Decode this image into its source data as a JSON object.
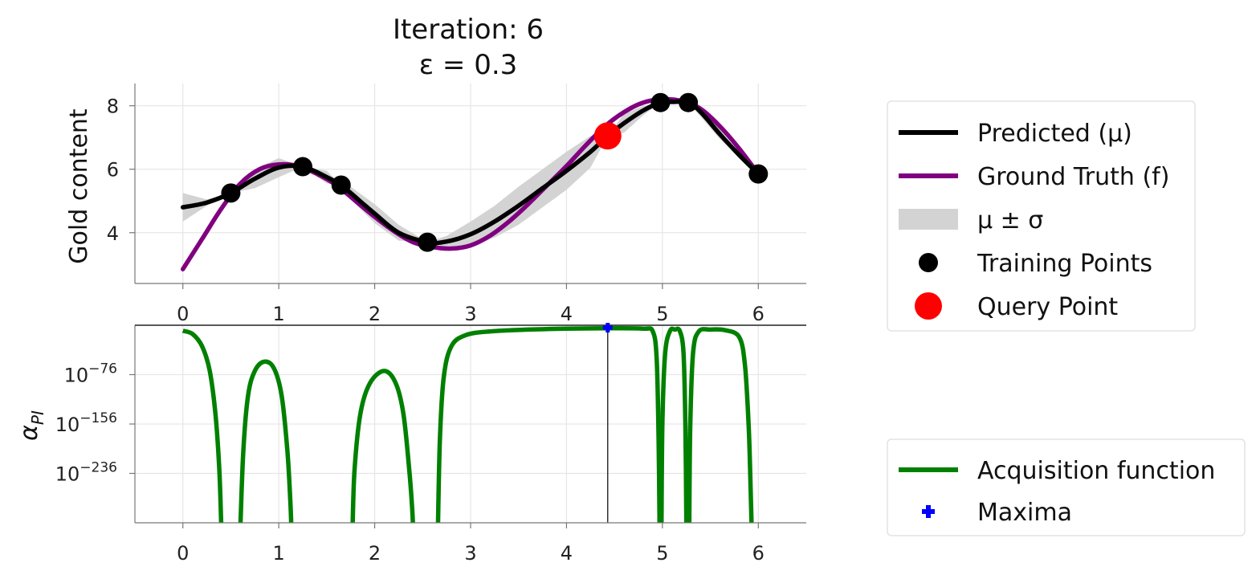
{
  "chart_data": [
    {
      "type": "line",
      "title_line1": "Iteration: 6",
      "title_line2": "ε = 0.3",
      "ylabel": "Gold content",
      "xlim": [
        -0.5,
        6.5
      ],
      "ylim": [
        2.4,
        8.7
      ],
      "xticks": [
        0,
        1,
        2,
        3,
        4,
        5,
        6
      ],
      "yticks": [
        4,
        6,
        8
      ],
      "grid": true,
      "legend": {
        "placement": "right",
        "entries": [
          {
            "label": "Predicted (μ)",
            "kind": "line",
            "color": "#000000"
          },
          {
            "label": "Ground Truth (f)",
            "kind": "line",
            "color": "#800080"
          },
          {
            "label": "μ ± σ",
            "kind": "band",
            "color": "#d3d3d3"
          },
          {
            "label": "Training Points",
            "kind": "marker",
            "color": "#000000"
          },
          {
            "label": "Query Point",
            "kind": "marker-large",
            "color": "#ff0000"
          }
        ]
      },
      "series": [
        {
          "name": "Predicted (μ)",
          "color": "#000000",
          "x": [
            0,
            0.25,
            0.5,
            0.75,
            1.0,
            1.25,
            1.5,
            1.65,
            1.75,
            2.0,
            2.25,
            2.55,
            2.75,
            3.0,
            3.25,
            3.5,
            3.75,
            4.0,
            4.25,
            4.43,
            4.6,
            4.8,
            4.98,
            5.1,
            5.27,
            5.4,
            5.6,
            5.8,
            6.0
          ],
          "y": [
            4.8,
            4.95,
            5.25,
            5.7,
            6.05,
            6.08,
            5.75,
            5.5,
            5.25,
            4.6,
            4.0,
            3.7,
            3.72,
            3.95,
            4.35,
            4.85,
            5.4,
            5.95,
            6.55,
            7.05,
            7.45,
            7.85,
            8.1,
            8.12,
            8.1,
            7.8,
            7.1,
            6.45,
            5.85
          ]
        },
        {
          "name": "Ground Truth (f)",
          "color": "#800080",
          "x": [
            0,
            0.2,
            0.4,
            0.6,
            0.8,
            1.0,
            1.2,
            1.4,
            1.6,
            1.8,
            2.0,
            2.2,
            2.4,
            2.6,
            2.8,
            3.0,
            3.2,
            3.4,
            3.6,
            3.8,
            4.0,
            4.2,
            4.4,
            4.6,
            4.8,
            5.0,
            5.2,
            5.4,
            5.6,
            5.8,
            6.0
          ],
          "y": [
            2.85,
            3.8,
            4.75,
            5.55,
            6.0,
            6.15,
            6.1,
            5.85,
            5.5,
            5.0,
            4.5,
            4.05,
            3.7,
            3.55,
            3.5,
            3.6,
            3.9,
            4.35,
            4.9,
            5.5,
            6.1,
            6.75,
            7.35,
            7.8,
            8.1,
            8.2,
            8.15,
            7.9,
            7.35,
            6.65,
            5.85
          ]
        }
      ],
      "band": {
        "name": "μ ± σ",
        "x": [
          0,
          0.25,
          0.5,
          0.75,
          1.0,
          1.25,
          1.5,
          1.65,
          1.75,
          2.0,
          2.25,
          2.55,
          2.75,
          3.0,
          3.25,
          3.5,
          3.75,
          4.0,
          4.25,
          4.43,
          4.6,
          4.8,
          4.98,
          5.1,
          5.27,
          5.4,
          5.6,
          5.8,
          6.0
        ],
        "lower": [
          4.35,
          4.85,
          5.25,
          5.4,
          5.75,
          6.08,
          5.55,
          5.5,
          5.05,
          4.3,
          3.75,
          3.7,
          3.55,
          3.55,
          3.85,
          4.25,
          4.8,
          5.35,
          6.05,
          7.05,
          7.15,
          7.7,
          8.1,
          8.05,
          8.1,
          7.65,
          6.95,
          6.4,
          5.85
        ],
        "upper": [
          5.25,
          5.05,
          5.25,
          6.0,
          6.35,
          6.08,
          5.95,
          5.5,
          5.45,
          4.9,
          4.25,
          3.7,
          3.9,
          4.35,
          4.85,
          5.45,
          6.0,
          6.55,
          7.05,
          7.05,
          7.75,
          8.0,
          8.1,
          8.2,
          8.1,
          7.95,
          7.25,
          6.5,
          5.85
        ]
      },
      "training_points": {
        "name": "Training Points",
        "color": "#000000",
        "x": [
          0.5,
          1.25,
          1.65,
          2.55,
          4.98,
          5.27,
          6.0
        ],
        "y": [
          5.25,
          6.08,
          5.5,
          3.7,
          8.1,
          8.1,
          5.85
        ]
      },
      "query_point": {
        "name": "Query Point",
        "color": "#ff0000",
        "x": 4.43,
        "y": 7.05
      }
    },
    {
      "type": "line",
      "ylabel": "α_PI",
      "ylabel_main": "α",
      "ylabel_sub": "PI",
      "xlim": [
        -0.5,
        6.5
      ],
      "ylim": [
        -316,
        4
      ],
      "yscale": "log",
      "xticks": [
        0,
        1,
        2,
        3,
        4,
        5,
        6
      ],
      "yticks": [
        {
          "value": -76,
          "base": "10",
          "exp": "−76"
        },
        {
          "value": -156,
          "base": "10",
          "exp": "−156"
        },
        {
          "value": -236,
          "base": "10",
          "exp": "−236"
        }
      ],
      "grid": true,
      "legend": {
        "placement": "lower right",
        "entries": [
          {
            "label": "Acquisition function",
            "kind": "line",
            "color": "#008000"
          },
          {
            "label": "Maxima",
            "kind": "plus",
            "color": "#0000ff"
          }
        ]
      },
      "series": [
        {
          "name": "Acquisition function",
          "color": "#008000",
          "segments": [
            {
              "x": [
                0.0,
                0.1,
                0.2,
                0.28,
                0.34,
                0.38,
                0.4
              ],
              "y": [
                -5,
                -10,
                -30,
                -70,
                -140,
                -230,
                -320
              ]
            },
            {
              "x": [
                0.6,
                0.63,
                0.68,
                0.75,
                0.85,
                0.95,
                1.03,
                1.09,
                1.12,
                1.13
              ],
              "y": [
                -320,
                -200,
                -110,
                -70,
                -55,
                -66,
                -110,
                -200,
                -280,
                -320
              ]
            },
            {
              "x": [
                1.77,
                1.79,
                1.85,
                1.95,
                2.1,
                2.22,
                2.3,
                2.36,
                2.39,
                2.4
              ],
              "y": [
                -320,
                -230,
                -140,
                -90,
                -70,
                -90,
                -140,
                -230,
                -290,
                -320
              ]
            },
            {
              "x": [
                2.66,
                2.68,
                2.72,
                2.8,
                2.95,
                3.2,
                3.6,
                4.0,
                4.43,
                4.8,
                4.9,
                4.94,
                4.96,
                4.97
              ],
              "y": [
                -320,
                -180,
                -80,
                -30,
                -12,
                -6,
                -3,
                -1.5,
                -1,
                -1.5,
                -6,
                -50,
                -180,
                -320
              ]
            },
            {
              "x": [
                4.99,
                5.0,
                5.03,
                5.08,
                5.13,
                5.18,
                5.22,
                5.24,
                5.25
              ],
              "y": [
                -320,
                -150,
                -40,
                -5,
                -3,
                -5,
                -40,
                -160,
                -320
              ]
            },
            {
              "x": [
                5.28,
                5.29,
                5.32,
                5.38,
                5.5,
                5.65,
                5.8,
                5.86,
                5.9,
                5.92,
                5.93
              ],
              "y": [
                -320,
                -160,
                -40,
                -6,
                -3,
                -4,
                -15,
                -60,
                -160,
                -260,
                -320
              ]
            }
          ]
        }
      ],
      "vline_x": 4.43,
      "maxima": {
        "name": "Maxima",
        "color": "#0000ff",
        "x": 4.43,
        "y": 0
      }
    }
  ]
}
